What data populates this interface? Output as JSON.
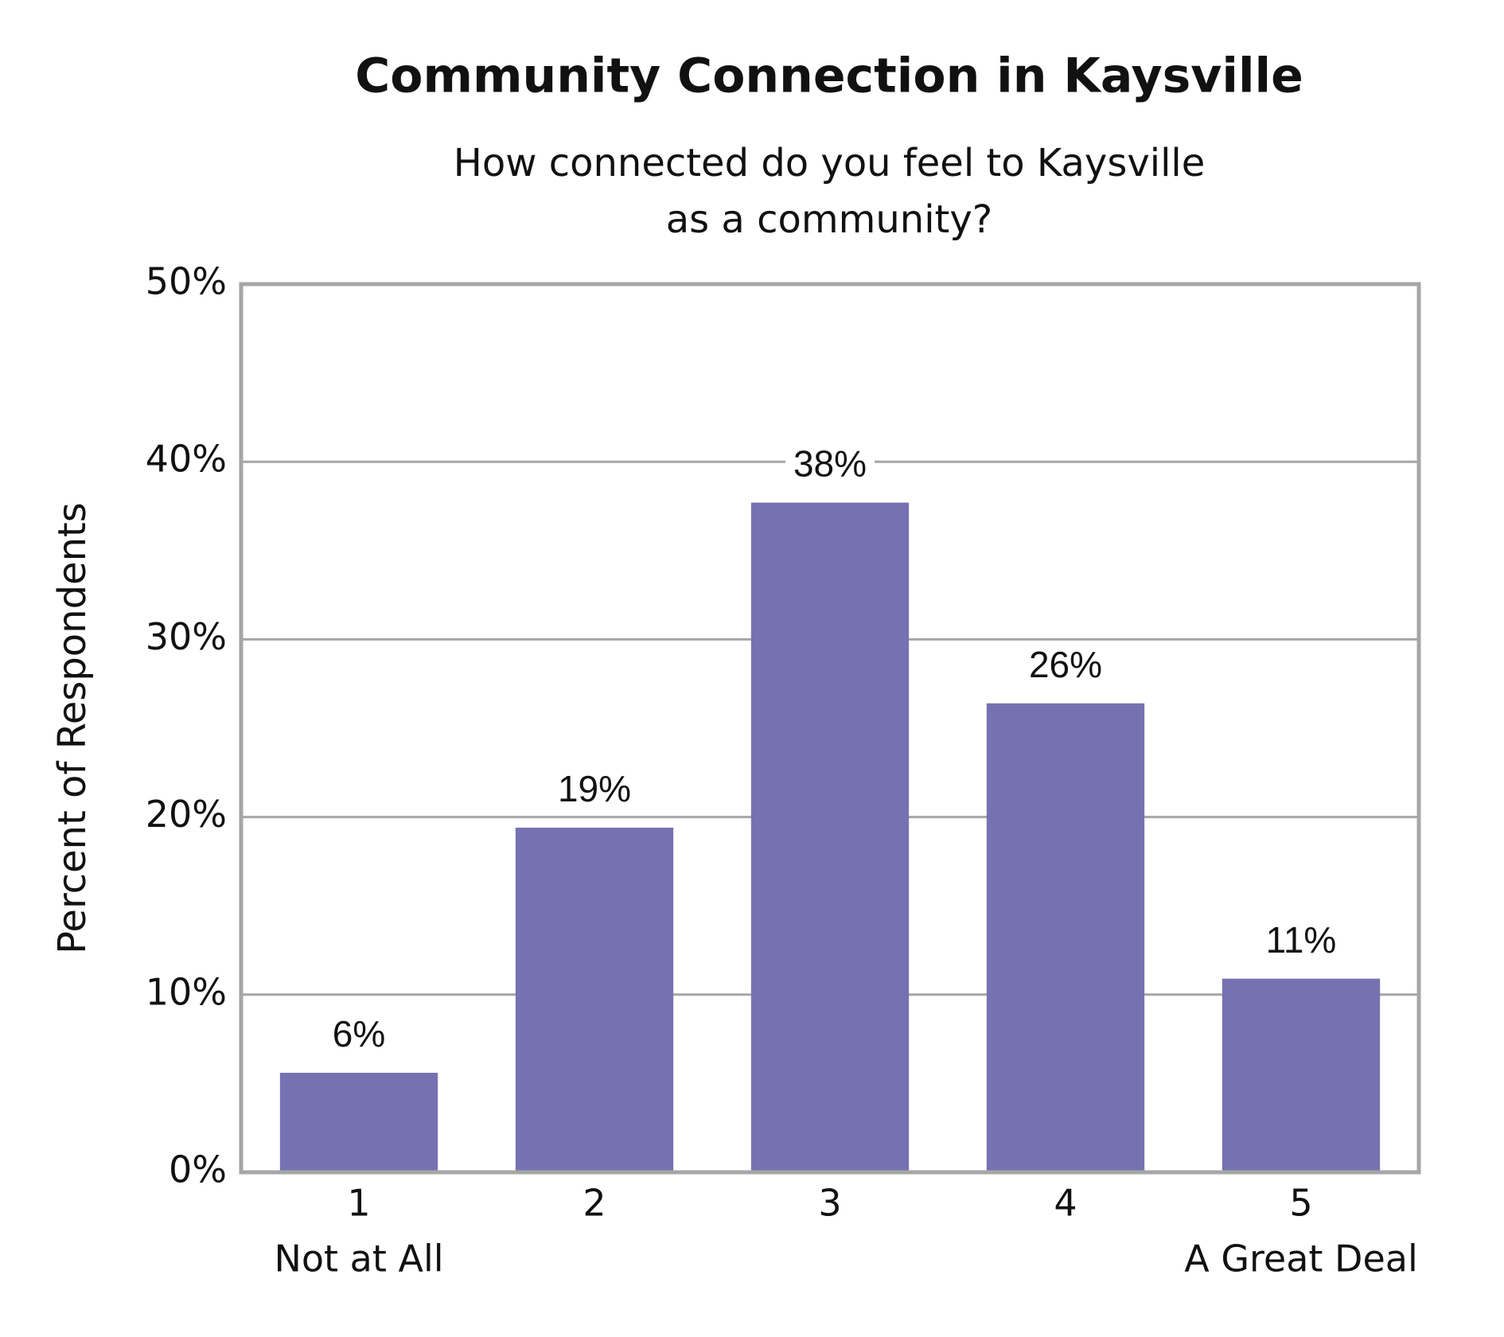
{
  "chart_data": {
    "type": "bar",
    "title": "Community Connection in Kaysville",
    "subtitle": [
      "How connected do you feel to Kaysville",
      "as a community?"
    ],
    "y_label": "Percent of Respondents",
    "categories": [
      "1",
      "2",
      "3",
      "4",
      "5"
    ],
    "category_sublabels": [
      "Not at All",
      null,
      null,
      null,
      "A Great Deal"
    ],
    "values": [
      5.6,
      19.4,
      37.7,
      26.4,
      10.9
    ],
    "value_labels": [
      "6%",
      "19%",
      "38%",
      "26%",
      "11%"
    ],
    "color": "#7672b1",
    "ylim": [
      0,
      50
    ],
    "yticks": [
      {
        "value": 0,
        "label": "0%"
      },
      {
        "value": 10,
        "label": "10%"
      },
      {
        "value": 20,
        "label": "20%"
      },
      {
        "value": 30,
        "label": "30%"
      },
      {
        "value": 40,
        "label": "40%"
      },
      {
        "value": 50,
        "label": "50%"
      }
    ],
    "grid": true
  }
}
